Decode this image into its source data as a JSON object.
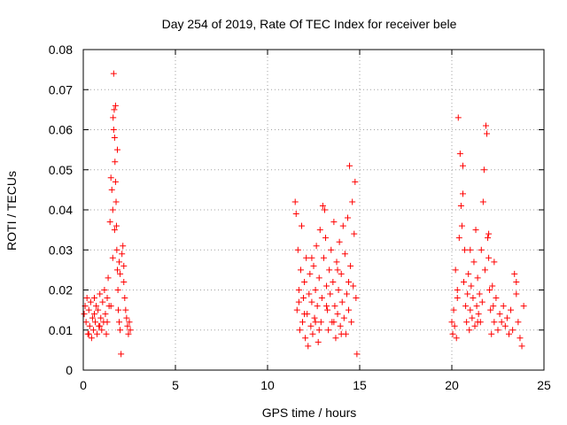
{
  "chart_data": {
    "type": "scatter",
    "title": "Day 254 of 2019, Rate Of TEC Index for receiver bele",
    "xlabel": "GPS time / hours",
    "ylabel": "ROTI / TECUs",
    "xlim": [
      0,
      25
    ],
    "ylim": [
      0,
      0.08
    ],
    "x_ticks": [
      0,
      5,
      10,
      15,
      20,
      25
    ],
    "y_ticks": [
      0,
      0.01,
      0.02,
      0.03,
      0.04,
      0.05,
      0.06,
      0.07,
      0.08
    ],
    "x_tick_labels": [
      "0",
      "5",
      "10",
      "15",
      "20",
      "25"
    ],
    "y_tick_labels": [
      "0",
      "0.01",
      "0.02",
      "0.03",
      "0.04",
      "0.05",
      "0.06",
      "0.07",
      "0.08"
    ],
    "grid": true,
    "marker": "+",
    "color": "#ff0000",
    "series": [
      {
        "name": "ROTI",
        "points": [
          [
            0.05,
            0.014
          ],
          [
            0.1,
            0.016
          ],
          [
            0.15,
            0.012
          ],
          [
            0.2,
            0.018
          ],
          [
            0.25,
            0.009
          ],
          [
            0.3,
            0.015
          ],
          [
            0.35,
            0.011
          ],
          [
            0.4,
            0.017
          ],
          [
            0.45,
            0.008
          ],
          [
            0.5,
            0.013
          ],
          [
            0.55,
            0.01
          ],
          [
            0.6,
            0.014
          ],
          [
            0.65,
            0.012
          ],
          [
            0.7,
            0.016
          ],
          [
            0.75,
            0.009
          ],
          [
            0.8,
            0.015
          ],
          [
            0.85,
            0.011
          ],
          [
            0.9,
            0.019
          ],
          [
            0.95,
            0.013
          ],
          [
            1.0,
            0.01
          ],
          [
            1.05,
            0.017
          ],
          [
            1.1,
            0.012
          ],
          [
            1.15,
            0.02
          ],
          [
            1.2,
            0.014
          ],
          [
            1.25,
            0.009
          ],
          [
            1.3,
            0.018
          ],
          [
            1.35,
            0.023
          ],
          [
            1.4,
            0.016
          ],
          [
            1.45,
            0.037
          ],
          [
            1.5,
            0.048
          ],
          [
            1.55,
            0.045
          ],
          [
            1.6,
            0.04
          ],
          [
            1.62,
            0.063
          ],
          [
            1.65,
            0.074
          ],
          [
            1.68,
            0.065
          ],
          [
            1.7,
            0.058
          ],
          [
            1.72,
            0.052
          ],
          [
            1.75,
            0.047
          ],
          [
            1.78,
            0.042
          ],
          [
            1.8,
            0.036
          ],
          [
            1.82,
            0.03
          ],
          [
            1.85,
            0.025
          ],
          [
            1.88,
            0.02
          ],
          [
            1.9,
            0.015
          ],
          [
            1.95,
            0.012
          ],
          [
            2.0,
            0.01
          ],
          [
            2.05,
            0.004
          ],
          [
            2.1,
            0.029
          ],
          [
            2.15,
            0.031
          ],
          [
            2.2,
            0.022
          ],
          [
            2.25,
            0.018
          ],
          [
            2.3,
            0.015
          ],
          [
            2.35,
            0.013
          ],
          [
            2.4,
            0.011
          ],
          [
            2.45,
            0.009
          ],
          [
            2.5,
            0.012
          ],
          [
            2.55,
            0.01
          ],
          [
            1.3,
            0.012
          ],
          [
            1.5,
            0.016
          ],
          [
            1.6,
            0.028
          ],
          [
            1.7,
            0.035
          ],
          [
            1.75,
            0.066
          ],
          [
            1.65,
            0.06
          ],
          [
            1.85,
            0.055
          ],
          [
            1.95,
            0.027
          ],
          [
            2.0,
            0.024
          ],
          [
            2.2,
            0.026
          ],
          [
            0.3,
            0.009
          ],
          [
            0.6,
            0.018
          ],
          [
            0.9,
            0.011
          ],
          [
            11.5,
            0.042
          ],
          [
            11.55,
            0.039
          ],
          [
            11.6,
            0.015
          ],
          [
            11.65,
            0.03
          ],
          [
            11.7,
            0.02
          ],
          [
            11.75,
            0.01
          ],
          [
            11.8,
            0.025
          ],
          [
            11.85,
            0.036
          ],
          [
            11.9,
            0.012
          ],
          [
            11.95,
            0.018
          ],
          [
            12.0,
            0.022
          ],
          [
            12.05,
            0.008
          ],
          [
            12.1,
            0.028
          ],
          [
            12.15,
            0.014
          ],
          [
            12.2,
            0.006
          ],
          [
            12.25,
            0.019
          ],
          [
            12.3,
            0.024
          ],
          [
            12.35,
            0.011
          ],
          [
            12.4,
            0.017
          ],
          [
            12.45,
            0.009
          ],
          [
            12.5,
            0.026
          ],
          [
            12.55,
            0.013
          ],
          [
            12.6,
            0.02
          ],
          [
            12.65,
            0.031
          ],
          [
            12.7,
            0.016
          ],
          [
            12.75,
            0.007
          ],
          [
            12.8,
            0.023
          ],
          [
            12.85,
            0.035
          ],
          [
            12.9,
            0.012
          ],
          [
            12.95,
            0.018
          ],
          [
            13.0,
            0.041
          ],
          [
            13.05,
            0.028
          ],
          [
            13.1,
            0.04
          ],
          [
            13.15,
            0.033
          ],
          [
            13.2,
            0.021
          ],
          [
            13.25,
            0.015
          ],
          [
            13.3,
            0.01
          ],
          [
            13.35,
            0.025
          ],
          [
            13.4,
            0.019
          ],
          [
            13.45,
            0.03
          ],
          [
            13.5,
            0.012
          ],
          [
            13.55,
            0.022
          ],
          [
            13.6,
            0.037
          ],
          [
            13.65,
            0.016
          ],
          [
            13.7,
            0.008
          ],
          [
            13.75,
            0.027
          ],
          [
            13.8,
            0.014
          ],
          [
            13.85,
            0.02
          ],
          [
            13.9,
            0.032
          ],
          [
            13.95,
            0.011
          ],
          [
            14.0,
            0.024
          ],
          [
            14.05,
            0.017
          ],
          [
            14.1,
            0.036
          ],
          [
            14.15,
            0.013
          ],
          [
            14.2,
            0.029
          ],
          [
            14.25,
            0.009
          ],
          [
            14.3,
            0.019
          ],
          [
            14.35,
            0.038
          ],
          [
            14.4,
            0.015
          ],
          [
            14.45,
            0.051
          ],
          [
            14.5,
            0.026
          ],
          [
            14.55,
            0.012
          ],
          [
            14.6,
            0.042
          ],
          [
            14.65,
            0.021
          ],
          [
            14.7,
            0.034
          ],
          [
            14.75,
            0.047
          ],
          [
            14.8,
            0.018
          ],
          [
            14.85,
            0.004
          ],
          [
            12.0,
            0.014
          ],
          [
            12.4,
            0.028
          ],
          [
            12.8,
            0.01
          ],
          [
            13.2,
            0.016
          ],
          [
            13.6,
            0.012
          ],
          [
            14.0,
            0.009
          ],
          [
            14.4,
            0.022
          ],
          [
            11.7,
            0.017
          ],
          [
            12.6,
            0.012
          ],
          [
            13.8,
            0.025
          ],
          [
            20.0,
            0.012
          ],
          [
            20.05,
            0.009
          ],
          [
            20.1,
            0.015
          ],
          [
            20.15,
            0.011
          ],
          [
            20.2,
            0.025
          ],
          [
            20.25,
            0.008
          ],
          [
            20.3,
            0.018
          ],
          [
            20.35,
            0.063
          ],
          [
            20.4,
            0.033
          ],
          [
            20.45,
            0.054
          ],
          [
            20.5,
            0.041
          ],
          [
            20.55,
            0.036
          ],
          [
            20.6,
            0.051
          ],
          [
            20.65,
            0.022
          ],
          [
            20.7,
            0.03
          ],
          [
            20.75,
            0.016
          ],
          [
            20.8,
            0.012
          ],
          [
            20.85,
            0.019
          ],
          [
            20.9,
            0.024
          ],
          [
            20.95,
            0.01
          ],
          [
            21.0,
            0.015
          ],
          [
            21.05,
            0.021
          ],
          [
            21.1,
            0.013
          ],
          [
            21.15,
            0.018
          ],
          [
            21.2,
            0.027
          ],
          [
            21.25,
            0.011
          ],
          [
            21.3,
            0.035
          ],
          [
            21.35,
            0.016
          ],
          [
            21.4,
            0.023
          ],
          [
            21.45,
            0.014
          ],
          [
            21.5,
            0.019
          ],
          [
            21.55,
            0.012
          ],
          [
            21.6,
            0.03
          ],
          [
            21.65,
            0.017
          ],
          [
            21.7,
            0.042
          ],
          [
            21.75,
            0.05
          ],
          [
            21.8,
            0.025
          ],
          [
            21.85,
            0.061
          ],
          [
            21.9,
            0.059
          ],
          [
            21.95,
            0.033
          ],
          [
            22.0,
            0.028
          ],
          [
            22.05,
            0.02
          ],
          [
            22.1,
            0.015
          ],
          [
            22.15,
            0.009
          ],
          [
            22.2,
            0.021
          ],
          [
            22.25,
            0.016
          ],
          [
            22.3,
            0.012
          ],
          [
            22.4,
            0.018
          ],
          [
            22.5,
            0.01
          ],
          [
            22.6,
            0.014
          ],
          [
            22.7,
            0.012
          ],
          [
            22.8,
            0.016
          ],
          [
            22.9,
            0.011
          ],
          [
            23.0,
            0.013
          ],
          [
            23.1,
            0.009
          ],
          [
            23.2,
            0.015
          ],
          [
            23.3,
            0.01
          ],
          [
            23.4,
            0.024
          ],
          [
            23.5,
            0.019
          ],
          [
            23.6,
            0.012
          ],
          [
            23.7,
            0.008
          ],
          [
            23.8,
            0.006
          ],
          [
            23.9,
            0.016
          ],
          [
            20.6,
            0.044
          ],
          [
            21.0,
            0.03
          ],
          [
            21.4,
            0.012
          ],
          [
            22.0,
            0.034
          ],
          [
            22.3,
            0.027
          ],
          [
            23.5,
            0.022
          ],
          [
            20.3,
            0.02
          ]
        ]
      }
    ]
  }
}
